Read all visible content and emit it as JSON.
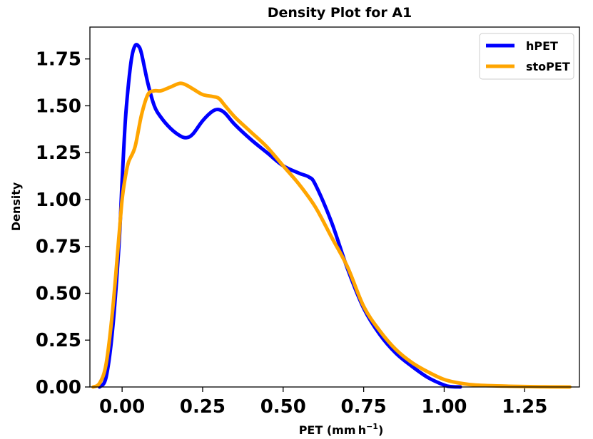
{
  "chart_data": {
    "type": "line",
    "title": "Density Plot for A1",
    "xlabel": "PET (mm h",
    "xlabel_exp": "−1",
    "xlabel_close": ")",
    "ylabel": "Density",
    "xlim": [
      -0.1,
      1.42
    ],
    "ylim": [
      0,
      1.92
    ],
    "x_ticks": [
      0.0,
      0.25,
      0.5,
      0.75,
      1.0,
      1.25
    ],
    "x_tick_labels": [
      "0.00",
      "0.25",
      "0.50",
      "0.75",
      "1.00",
      "1.25"
    ],
    "y_ticks": [
      0.0,
      0.25,
      0.5,
      0.75,
      1.0,
      1.25,
      1.5,
      1.75
    ],
    "y_tick_labels": [
      "0.00",
      "0.25",
      "0.50",
      "0.75",
      "1.00",
      "1.25",
      "1.50",
      "1.75"
    ],
    "grid": false,
    "legend_position": "top-right",
    "series": [
      {
        "name": "hPET",
        "color": "#0000ff",
        "x": [
          -0.07,
          -0.05,
          -0.03,
          -0.01,
          0.0,
          0.01,
          0.02,
          0.03,
          0.04,
          0.05,
          0.06,
          0.08,
          0.1,
          0.12,
          0.15,
          0.18,
          0.2,
          0.22,
          0.25,
          0.28,
          0.3,
          0.32,
          0.35,
          0.4,
          0.45,
          0.5,
          0.55,
          0.58,
          0.6,
          0.65,
          0.7,
          0.75,
          0.8,
          0.85,
          0.9,
          0.95,
          1.0,
          1.02,
          1.05
        ],
        "y": [
          0.0,
          0.05,
          0.3,
          0.75,
          1.1,
          1.42,
          1.62,
          1.76,
          1.82,
          1.82,
          1.78,
          1.62,
          1.5,
          1.44,
          1.38,
          1.34,
          1.33,
          1.35,
          1.42,
          1.47,
          1.48,
          1.46,
          1.4,
          1.32,
          1.25,
          1.18,
          1.14,
          1.12,
          1.08,
          0.88,
          0.63,
          0.42,
          0.28,
          0.18,
          0.11,
          0.05,
          0.01,
          0.002,
          0.0
        ]
      },
      {
        "name": "stoPET",
        "color": "#ffa500",
        "x": [
          -0.09,
          -0.07,
          -0.05,
          -0.03,
          -0.01,
          0.0,
          0.01,
          0.02,
          0.04,
          0.06,
          0.08,
          0.1,
          0.12,
          0.15,
          0.18,
          0.2,
          0.22,
          0.25,
          0.28,
          0.3,
          0.32,
          0.35,
          0.4,
          0.45,
          0.5,
          0.55,
          0.6,
          0.65,
          0.7,
          0.75,
          0.8,
          0.85,
          0.9,
          0.95,
          1.0,
          1.05,
          1.1,
          1.2,
          1.3,
          1.39
        ],
        "y": [
          0.0,
          0.02,
          0.12,
          0.4,
          0.8,
          1.0,
          1.12,
          1.2,
          1.28,
          1.45,
          1.56,
          1.58,
          1.58,
          1.6,
          1.62,
          1.61,
          1.59,
          1.56,
          1.55,
          1.54,
          1.5,
          1.44,
          1.36,
          1.28,
          1.18,
          1.08,
          0.96,
          0.8,
          0.64,
          0.43,
          0.3,
          0.2,
          0.13,
          0.08,
          0.04,
          0.02,
          0.01,
          0.004,
          0.001,
          0.0
        ]
      }
    ]
  }
}
